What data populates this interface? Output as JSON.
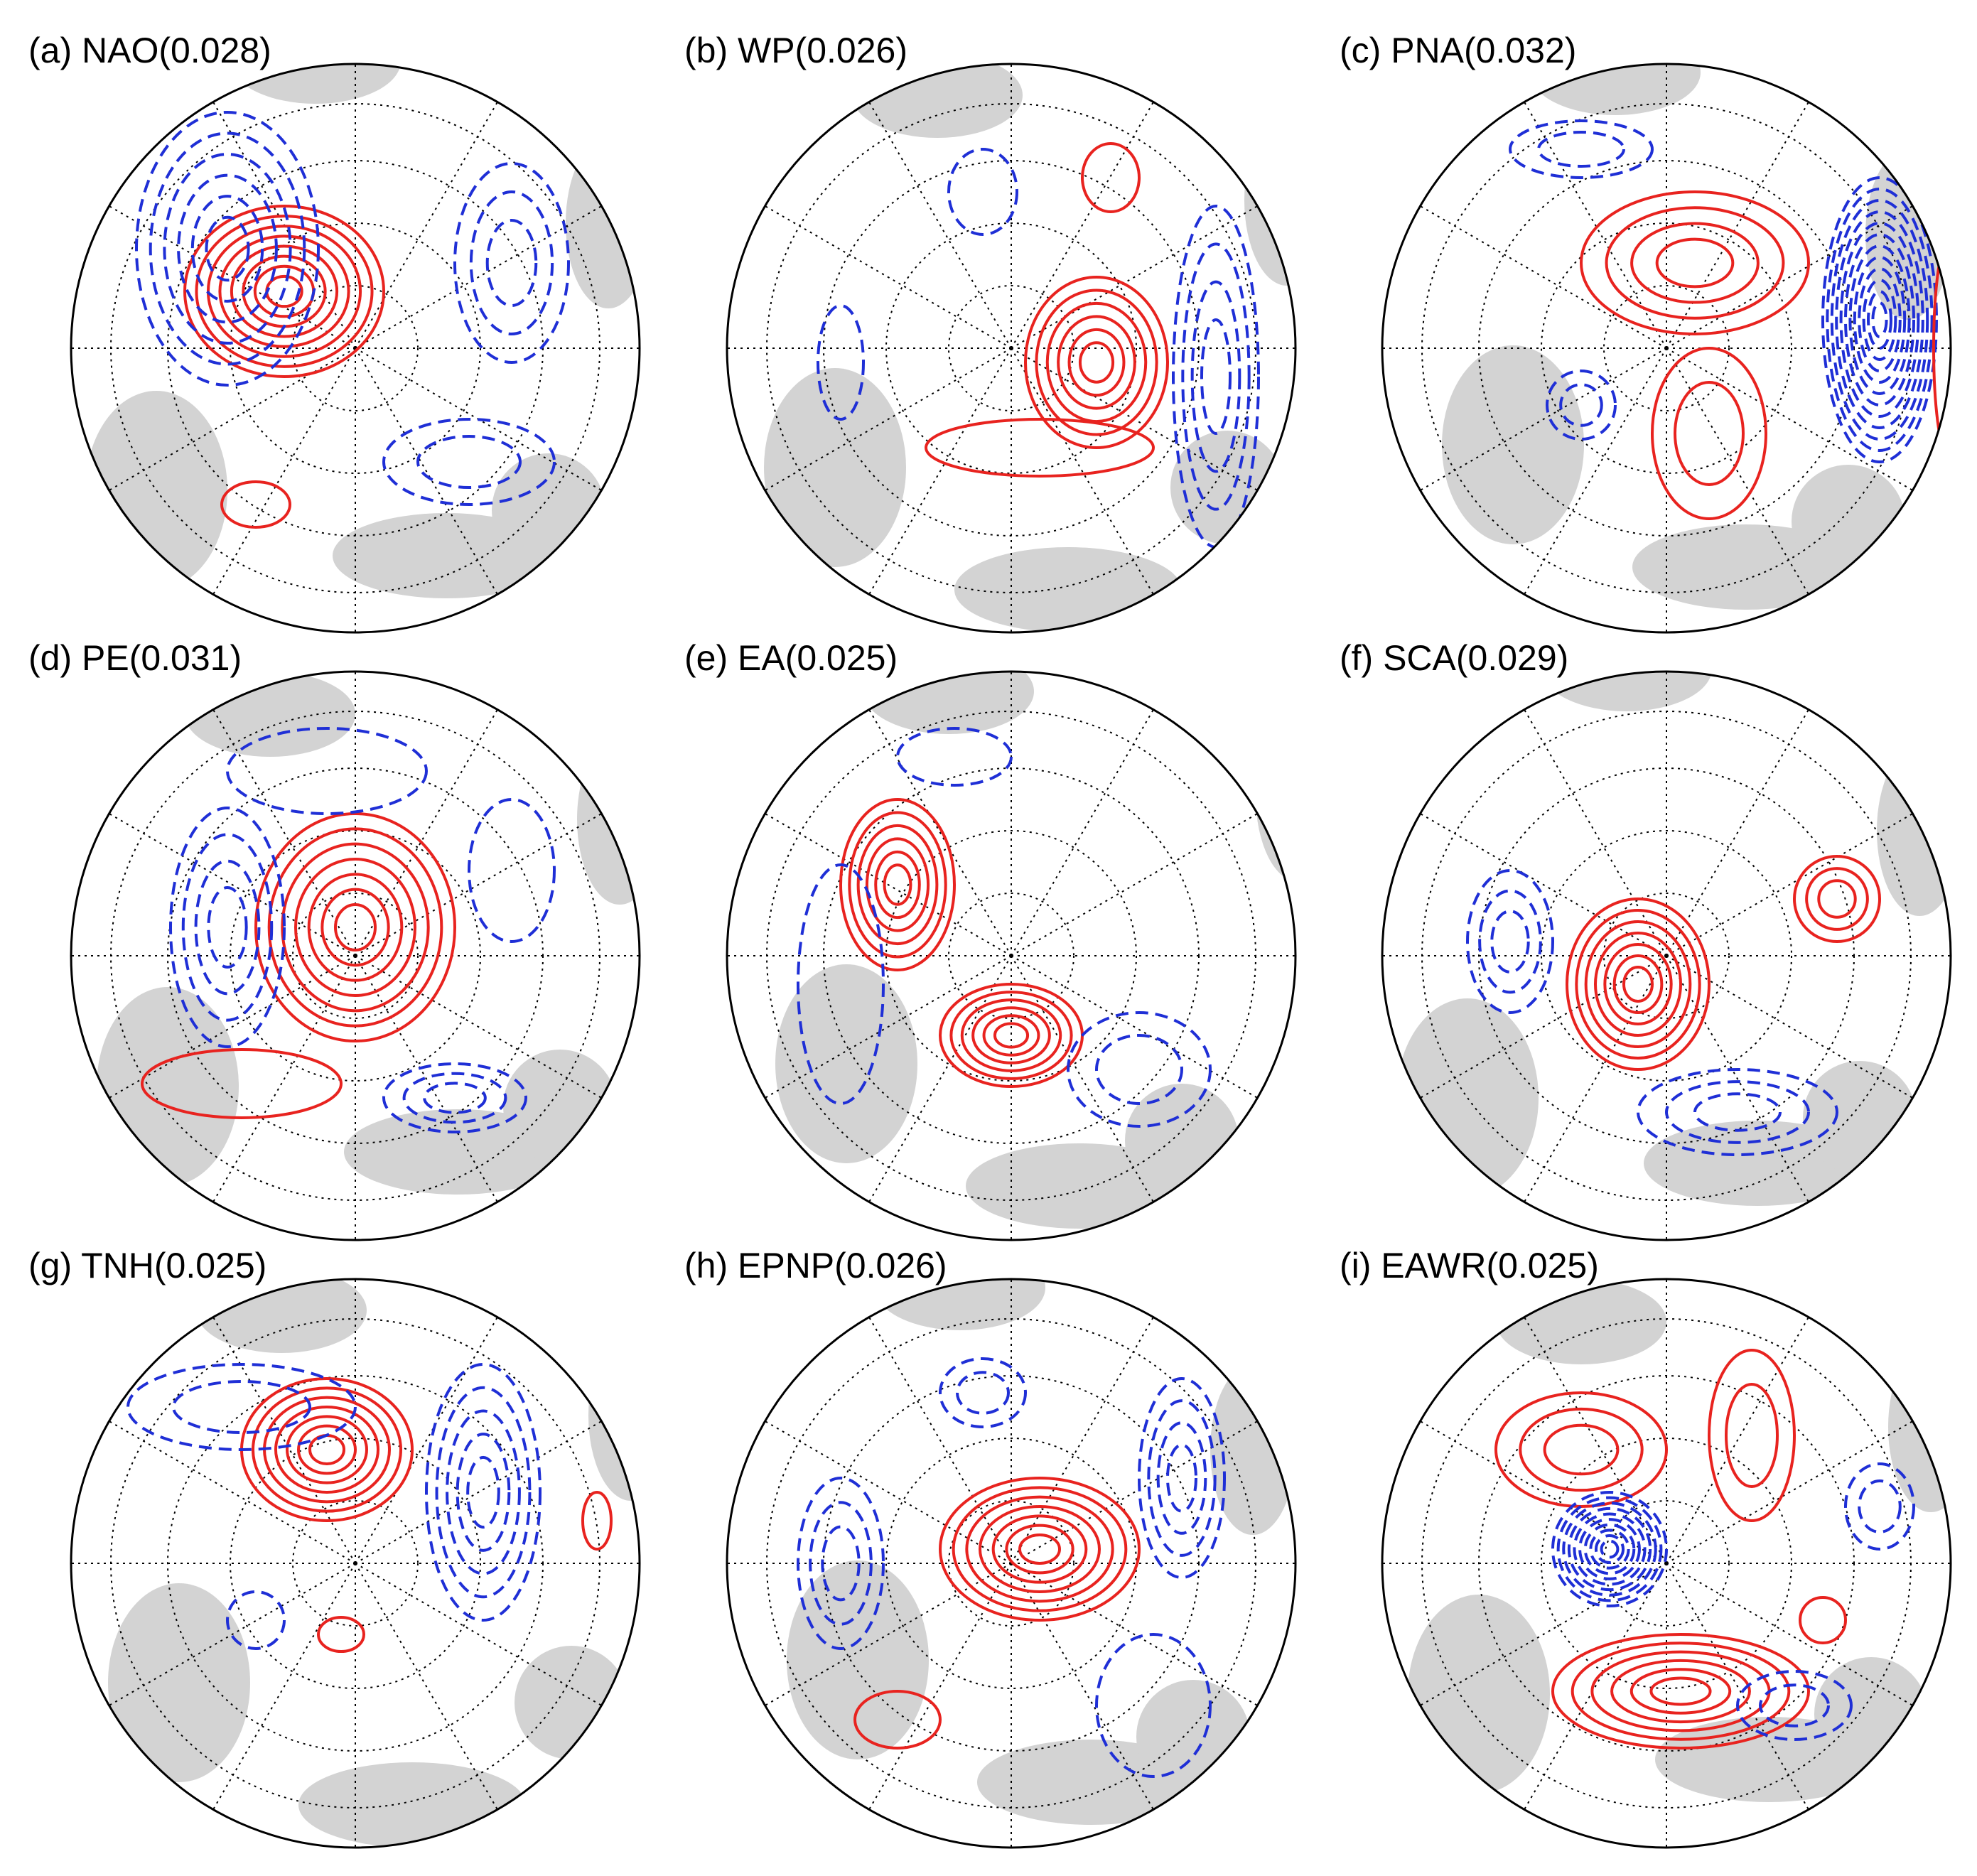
{
  "panels": [
    {
      "label": "(a) NAO(0.028)"
    },
    {
      "label": "(b) WP(0.026)"
    },
    {
      "label": "(c) PNA(0.032)"
    },
    {
      "label": "(d) PE(0.031)"
    },
    {
      "label": "(e) EA(0.025)"
    },
    {
      "label": "(f) SCA(0.029)"
    },
    {
      "label": "(g) TNH(0.025)"
    },
    {
      "label": "(h) EPNP(0.026)"
    },
    {
      "label": "(i) EAWR(0.025)"
    }
  ]
}
